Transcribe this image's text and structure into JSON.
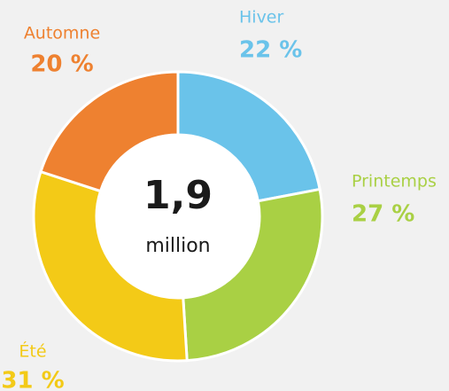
{
  "chart_data": {
    "type": "donut",
    "center_value": "1,9",
    "center_label": "million",
    "categories": [
      "Hiver",
      "Printemps",
      "Été",
      "Automne"
    ],
    "values": [
      22,
      27,
      31,
      20
    ],
    "value_labels": [
      "22 %",
      "27 %",
      "31 %",
      "20 %"
    ],
    "colors": [
      "#6ac3ea",
      "#a9d044",
      "#f3ca17",
      "#ee8130"
    ]
  }
}
